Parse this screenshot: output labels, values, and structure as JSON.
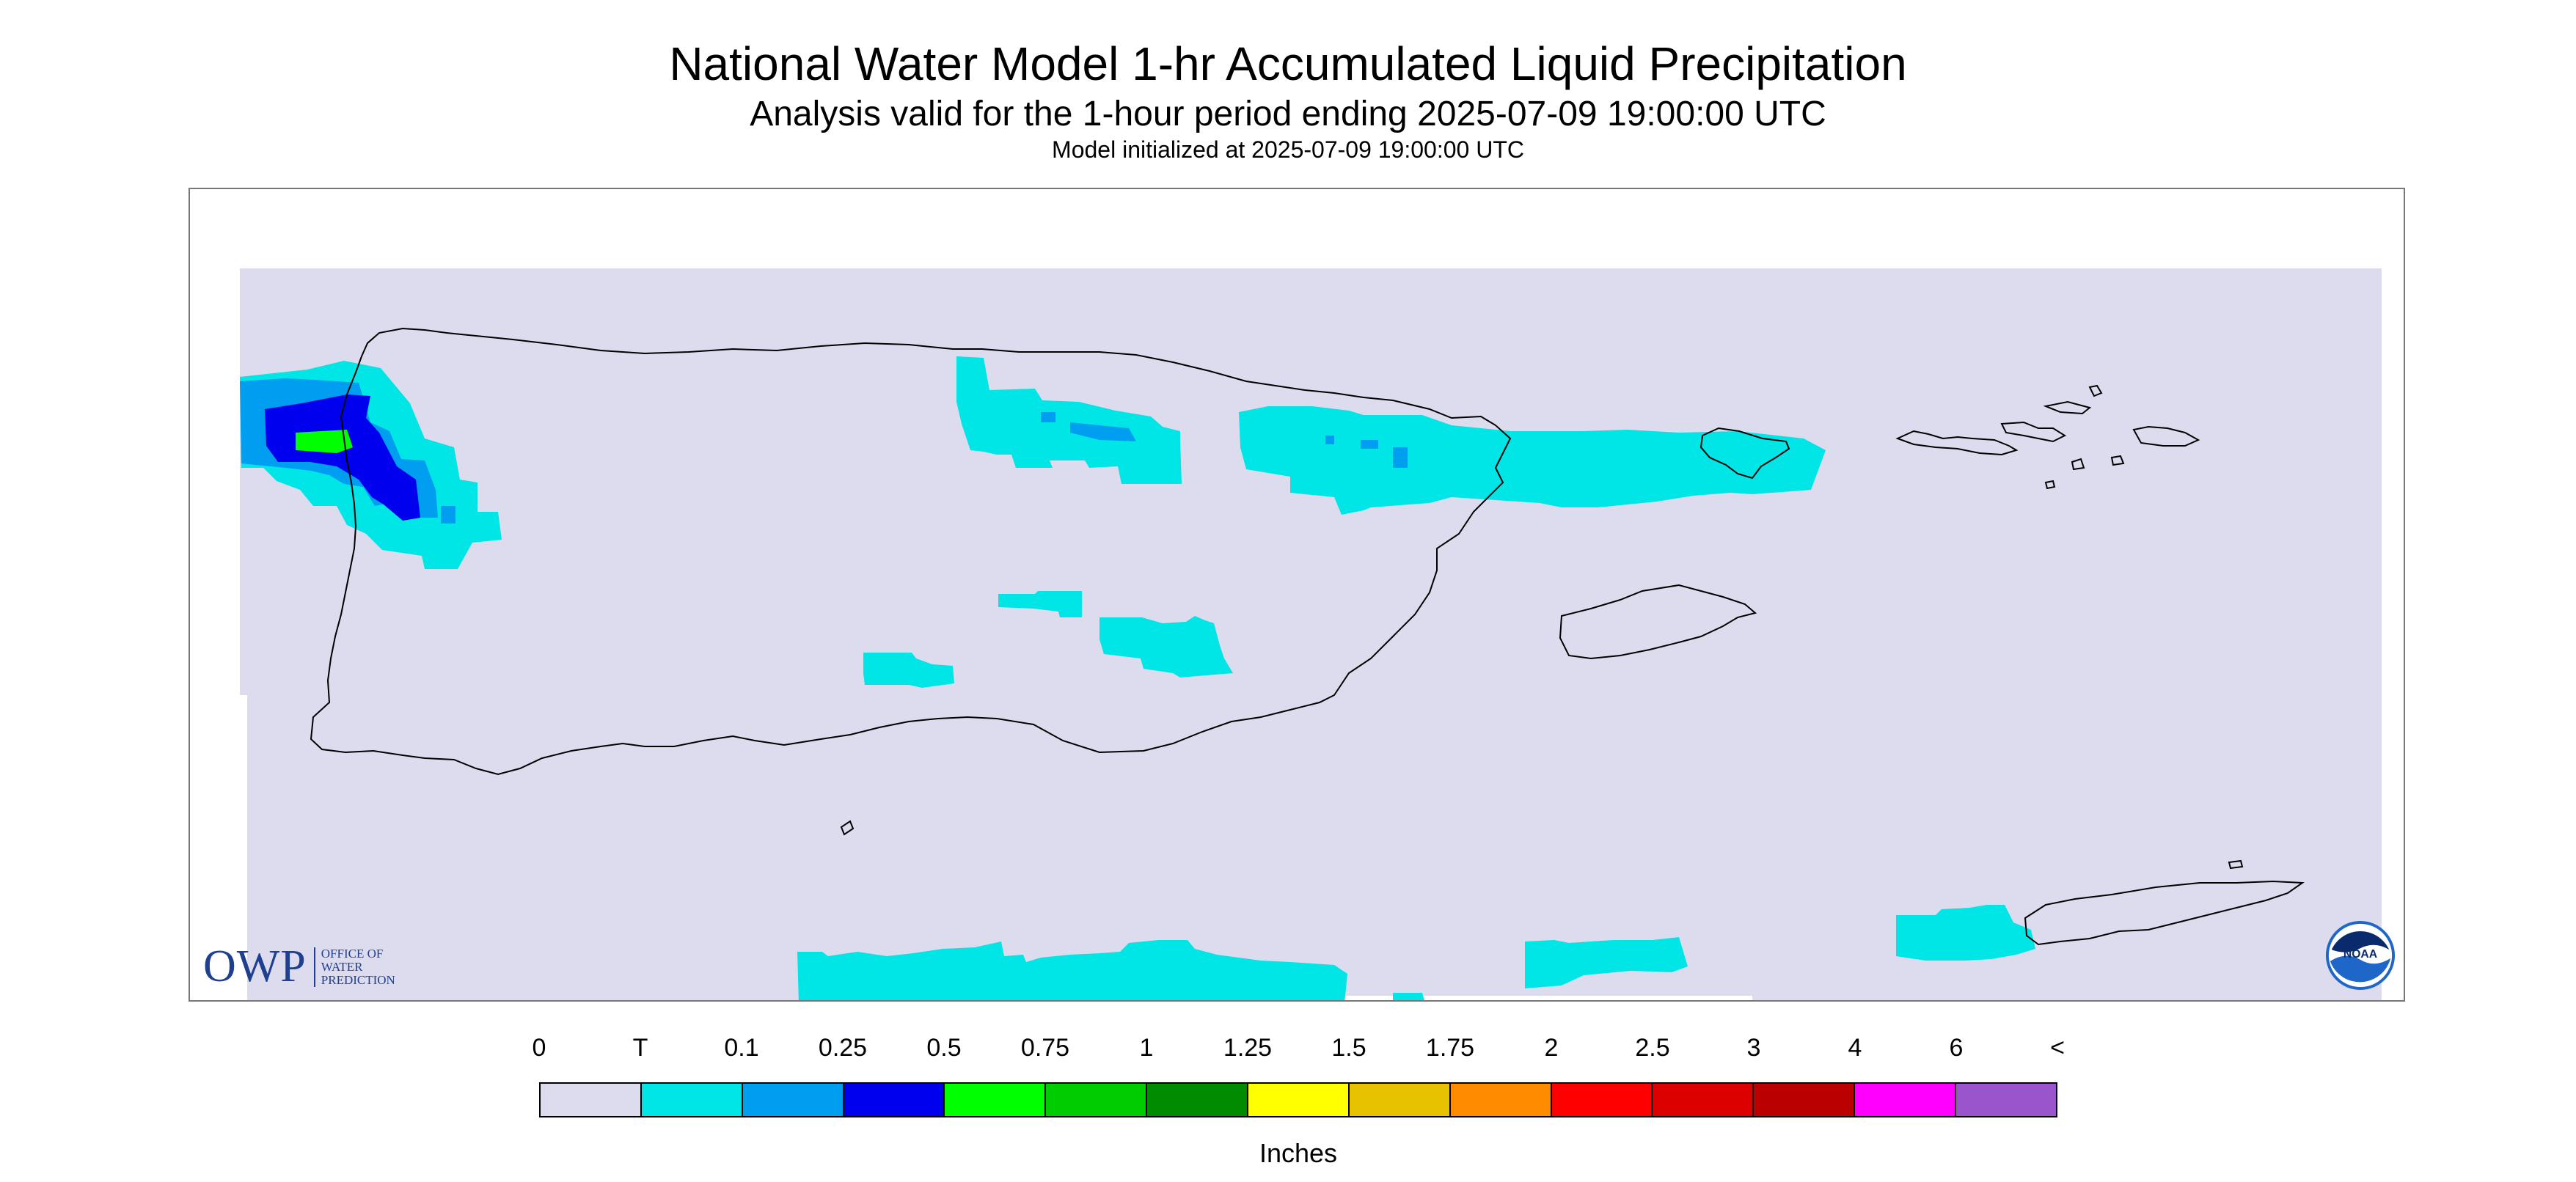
{
  "header": {
    "title": "National Water Model 1-hr Accumulated Liquid Precipitation",
    "subtitle": "Analysis valid for the 1-hour period ending 2025-07-09 19:00:00 UTC",
    "init": "Model initialized at 2025-07-09 19:00:00 UTC"
  },
  "logos": {
    "owp_letters": "OWP",
    "owp_line1": "OFFICE OF",
    "owp_line2": "WATER",
    "owp_line3": "PREDICTION",
    "noaa": "NOAA"
  },
  "legend": {
    "ticks": [
      "0",
      "T",
      "0.1",
      "0.25",
      "0.5",
      "0.75",
      "1",
      "1.25",
      "1.5",
      "1.75",
      "2",
      "2.5",
      "3",
      "4",
      "6",
      "<"
    ],
    "colors": [
      "#dcdcee",
      "#00e5e5",
      "#009ef0",
      "#0000ee",
      "#00ff00",
      "#00cd00",
      "#008b00",
      "#ffff00",
      "#e6c200",
      "#ff8c00",
      "#ff0000",
      "#dd0000",
      "#bb0000",
      "#ff00ff",
      "#9a55cc"
    ],
    "units": "Inches"
  },
  "map_colors": {
    "background": "#dcdcee",
    "coast": "#000000"
  }
}
